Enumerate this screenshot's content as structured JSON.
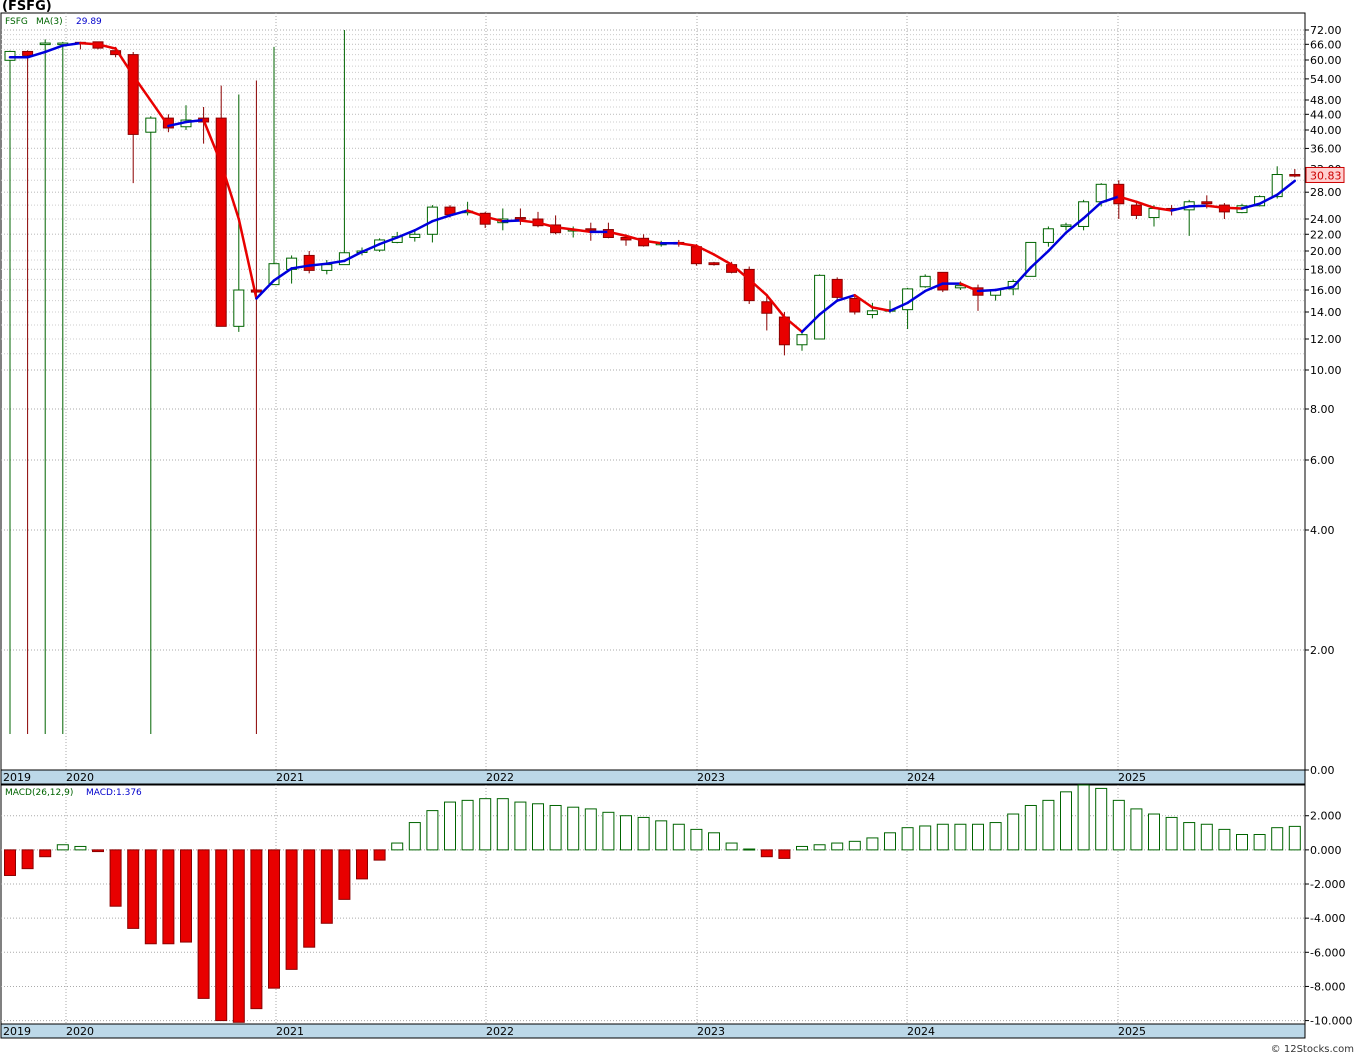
{
  "window_title": "(FSFG)",
  "credit": "© 12Stocks.com",
  "colors": {
    "up_fill": "#ffffff",
    "up_stroke": "#006400",
    "down_fill": "#e80000",
    "down_stroke": "#8b0000",
    "ma_up": "#0000dd",
    "ma_down": "#e80000",
    "grid": "#aaaaaa",
    "year_bar": "#bcd8e8",
    "price_tag_bg": "#ffd0d0",
    "price_tag_fg": "#cc0000"
  },
  "chart_data": [
    {
      "type": "candlestick",
      "title": "(FSFG)",
      "legend": {
        "symbol": "FSFG",
        "ma_label": "MA(3)",
        "ma_value": "29.89"
      },
      "last_price_label": "30.83",
      "y_scale": "log",
      "y_ticks": [
        "72.00",
        "66.00",
        "60.00",
        "54.00",
        "48.00",
        "44.00",
        "40.00",
        "36.00",
        "32.00",
        "28.00",
        "24.00",
        "22.00",
        "20.00",
        "18.00",
        "16.00",
        "14.00",
        "12.00",
        "10.00",
        "8.00",
        "6.00",
        "4.00",
        "2.00",
        "0.00"
      ],
      "year_labels": [
        "2019",
        "2020",
        "2021",
        "2022",
        "2023",
        "2024",
        "2025"
      ],
      "candles": [
        {
          "x": "2019-08",
          "o": 59.9,
          "h": 63.5,
          "l": 0.6,
          "c": 63.2
        },
        {
          "x": "2019-09",
          "o": 63.2,
          "h": 63.6,
          "l": 0.6,
          "c": 61.7
        },
        {
          "x": "2019-10",
          "o": 66.3,
          "h": 68.0,
          "l": 0.6,
          "c": 66.5
        },
        {
          "x": "2019-11",
          "o": 66.5,
          "h": 67.0,
          "l": 0.6,
          "c": 66.5
        },
        {
          "x": "2019-12",
          "o": 66.8,
          "h": 67.0,
          "l": 64.0,
          "c": 66.7
        },
        {
          "x": "2020-01",
          "o": 67.0,
          "h": 67.0,
          "l": 64.0,
          "c": 64.5
        },
        {
          "x": "2020-02",
          "o": 63.5,
          "h": 65.0,
          "l": 61.0,
          "c": 62.0
        },
        {
          "x": "2020-03",
          "o": 62.0,
          "h": 63.0,
          "l": 29.5,
          "c": 39.0
        },
        {
          "x": "2020-04",
          "o": 39.5,
          "h": 43.5,
          "l": 0.6,
          "c": 43.0
        },
        {
          "x": "2020-05",
          "o": 43.0,
          "h": 44.0,
          "l": 39.5,
          "c": 40.5
        },
        {
          "x": "2020-06",
          "o": 40.8,
          "h": 46.5,
          "l": 40.0,
          "c": 42.5
        },
        {
          "x": "2020-07",
          "o": 43.0,
          "h": 46.0,
          "l": 37.0,
          "c": 42.0
        },
        {
          "x": "2020-08",
          "o": 43.0,
          "h": 52.0,
          "l": 12.9,
          "c": 12.9
        },
        {
          "x": "2020-09",
          "o": 12.9,
          "h": 49.5,
          "l": 12.5,
          "c": 16.0
        },
        {
          "x": "2020-10",
          "o": 16.0,
          "h": 53.5,
          "l": 0.6,
          "c": 15.8
        },
        {
          "x": "2020-11",
          "o": 16.5,
          "h": 65.0,
          "l": 16.5,
          "c": 18.6
        },
        {
          "x": "2020-12",
          "o": 18.0,
          "h": 19.5,
          "l": 16.6,
          "c": 19.2
        },
        {
          "x": "2021-01",
          "o": 19.5,
          "h": 20.0,
          "l": 17.6,
          "c": 17.9
        },
        {
          "x": "2021-02",
          "o": 17.9,
          "h": 19.0,
          "l": 17.5,
          "c": 18.5
        },
        {
          "x": "2021-03",
          "o": 18.5,
          "h": 72.0,
          "l": 18.5,
          "c": 19.8
        },
        {
          "x": "2021-04",
          "o": 19.9,
          "h": 20.4,
          "l": 19.5,
          "c": 20.0
        },
        {
          "x": "2021-05",
          "o": 20.1,
          "h": 21.5,
          "l": 19.9,
          "c": 21.3
        },
        {
          "x": "2021-06",
          "o": 21.0,
          "h": 22.3,
          "l": 20.9,
          "c": 21.7
        },
        {
          "x": "2021-07",
          "o": 21.6,
          "h": 22.5,
          "l": 21.1,
          "c": 22.0
        },
        {
          "x": "2021-08",
          "o": 22.0,
          "h": 26.0,
          "l": 21.0,
          "c": 25.7
        },
        {
          "x": "2021-09",
          "o": 25.7,
          "h": 26.0,
          "l": 24.2,
          "c": 24.6
        },
        {
          "x": "2021-10",
          "o": 25.0,
          "h": 26.5,
          "l": 24.5,
          "c": 25.1
        },
        {
          "x": "2021-11",
          "o": 24.8,
          "h": 25.0,
          "l": 22.8,
          "c": 23.3
        },
        {
          "x": "2021-12",
          "o": 23.5,
          "h": 25.5,
          "l": 22.5,
          "c": 24.0
        },
        {
          "x": "2022-01",
          "o": 24.2,
          "h": 25.5,
          "l": 23.2,
          "c": 24.1
        },
        {
          "x": "2022-02",
          "o": 24.0,
          "h": 25.0,
          "l": 22.9,
          "c": 23.1
        },
        {
          "x": "2022-03",
          "o": 23.2,
          "h": 24.5,
          "l": 22.0,
          "c": 22.2
        },
        {
          "x": "2022-04",
          "o": 22.6,
          "h": 23.0,
          "l": 21.6,
          "c": 22.6
        },
        {
          "x": "2022-05",
          "o": 22.7,
          "h": 23.5,
          "l": 21.2,
          "c": 22.6
        },
        {
          "x": "2022-06",
          "o": 22.6,
          "h": 23.5,
          "l": 21.5,
          "c": 21.6
        },
        {
          "x": "2022-07",
          "o": 21.6,
          "h": 22.0,
          "l": 20.6,
          "c": 21.3
        },
        {
          "x": "2022-08",
          "o": 21.5,
          "h": 22.0,
          "l": 20.5,
          "c": 20.6
        },
        {
          "x": "2022-09",
          "o": 20.9,
          "h": 21.2,
          "l": 20.5,
          "c": 20.9
        },
        {
          "x": "2022-10",
          "o": 21.0,
          "h": 21.3,
          "l": 20.5,
          "c": 20.8
        },
        {
          "x": "2022-11",
          "o": 20.5,
          "h": 20.8,
          "l": 18.4,
          "c": 18.6
        },
        {
          "x": "2022-12",
          "o": 18.7,
          "h": 18.8,
          "l": 18.4,
          "c": 18.5
        },
        {
          "x": "2023-01",
          "o": 18.5,
          "h": 18.8,
          "l": 17.6,
          "c": 17.7
        },
        {
          "x": "2023-02",
          "o": 18.0,
          "h": 18.3,
          "l": 14.7,
          "c": 15.0
        },
        {
          "x": "2023-03",
          "o": 14.9,
          "h": 15.5,
          "l": 12.6,
          "c": 13.9
        },
        {
          "x": "2023-04",
          "o": 13.6,
          "h": 14.0,
          "l": 10.9,
          "c": 11.6
        },
        {
          "x": "2023-05",
          "o": 11.6,
          "h": 12.6,
          "l": 11.2,
          "c": 12.3
        },
        {
          "x": "2023-06",
          "o": 12.0,
          "h": 17.5,
          "l": 12.0,
          "c": 17.4
        },
        {
          "x": "2023-07",
          "o": 17.0,
          "h": 17.2,
          "l": 15.0,
          "c": 15.3
        },
        {
          "x": "2023-08",
          "o": 15.2,
          "h": 15.4,
          "l": 13.8,
          "c": 14.0
        },
        {
          "x": "2023-09",
          "o": 13.8,
          "h": 14.8,
          "l": 13.5,
          "c": 14.1
        },
        {
          "x": "2023-10",
          "o": 14.1,
          "h": 15.0,
          "l": 13.9,
          "c": 14.2
        },
        {
          "x": "2023-11",
          "o": 14.2,
          "h": 16.2,
          "l": 12.7,
          "c": 16.1
        },
        {
          "x": "2023-12",
          "o": 16.3,
          "h": 17.5,
          "l": 16.2,
          "c": 17.3
        },
        {
          "x": "2024-01",
          "o": 17.7,
          "h": 17.7,
          "l": 15.8,
          "c": 16.0
        },
        {
          "x": "2024-02",
          "o": 16.2,
          "h": 16.8,
          "l": 16.0,
          "c": 16.4
        },
        {
          "x": "2024-03",
          "o": 16.2,
          "h": 16.5,
          "l": 14.1,
          "c": 15.5
        },
        {
          "x": "2024-04",
          "o": 15.5,
          "h": 16.0,
          "l": 15.0,
          "c": 16.0
        },
        {
          "x": "2024-05",
          "o": 16.1,
          "h": 17.0,
          "l": 15.5,
          "c": 16.8
        },
        {
          "x": "2024-06",
          "o": 17.3,
          "h": 21.0,
          "l": 17.3,
          "c": 21.0
        },
        {
          "x": "2024-07",
          "o": 21.0,
          "h": 23.0,
          "l": 20.5,
          "c": 22.7
        },
        {
          "x": "2024-08",
          "o": 23.0,
          "h": 23.5,
          "l": 22.5,
          "c": 23.2
        },
        {
          "x": "2024-09",
          "o": 23.0,
          "h": 26.8,
          "l": 22.5,
          "c": 26.5
        },
        {
          "x": "2024-10",
          "o": 26.5,
          "h": 29.5,
          "l": 25.8,
          "c": 29.3
        },
        {
          "x": "2024-11",
          "o": 29.3,
          "h": 30.0,
          "l": 24.0,
          "c": 26.2
        },
        {
          "x": "2024-12",
          "o": 26.0,
          "h": 26.5,
          "l": 24.0,
          "c": 24.5
        },
        {
          "x": "2025-01",
          "o": 24.2,
          "h": 26.0,
          "l": 23.0,
          "c": 25.5
        },
        {
          "x": "2025-02",
          "o": 25.5,
          "h": 26.0,
          "l": 24.5,
          "c": 25.3
        },
        {
          "x": "2025-03",
          "o": 25.3,
          "h": 26.8,
          "l": 21.8,
          "c": 26.5
        },
        {
          "x": "2025-04",
          "o": 26.5,
          "h": 27.5,
          "l": 25.5,
          "c": 26.2
        },
        {
          "x": "2025-05",
          "o": 26.0,
          "h": 26.3,
          "l": 24.0,
          "c": 25.0
        },
        {
          "x": "2025-06",
          "o": 24.9,
          "h": 26.2,
          "l": 24.8,
          "c": 25.9
        },
        {
          "x": "2025-07",
          "o": 25.9,
          "h": 27.5,
          "l": 25.8,
          "c": 27.3
        },
        {
          "x": "2025-08",
          "o": 27.3,
          "h": 32.5,
          "l": 27.0,
          "c": 31.0
        },
        {
          "x": "2025-09",
          "o": 31.0,
          "h": 32.0,
          "l": 30.5,
          "c": 30.83
        }
      ],
      "ma3": [
        61,
        61,
        63,
        65.5,
        66.5,
        66,
        64.3,
        55,
        47.8,
        41,
        42,
        42.5,
        33,
        24,
        15.2,
        16.9,
        18.1,
        18.4,
        18.6,
        18.9,
        19.9,
        20.8,
        21.6,
        22.5,
        23.7,
        24.5,
        25.2,
        24.3,
        23.7,
        23.8,
        23.5,
        22.9,
        22.6,
        22.3,
        22.3,
        21.8,
        21.2,
        20.9,
        20.9,
        20.6,
        19.6,
        18.5,
        17.0,
        15.5,
        13.6,
        12.5,
        13.8,
        15.0,
        15.5,
        14.4,
        14.1,
        14.8,
        15.9,
        16.6,
        16.6,
        15.9,
        16.0,
        16.3,
        18.2,
        20.0,
        22.2,
        24.1,
        26.4,
        27.3,
        26.5,
        25.6,
        25.2,
        25.8,
        25.9,
        25.6,
        25.5,
        26.2,
        27.6,
        29.89
      ]
    },
    {
      "type": "bar",
      "title": "MACD(26,12,9)",
      "legend": {
        "label": "MACD(26,12,9)",
        "value_label": "MACD:1.376"
      },
      "y_ticks": [
        "2.000",
        "0.000",
        "-2.000",
        "-4.000",
        "-6.000",
        "-8.000",
        "-10.000"
      ],
      "ylim": [
        -10.2,
        3.8
      ],
      "year_labels": [
        "2019",
        "2020",
        "2021",
        "2022",
        "2023",
        "2024",
        "2025"
      ],
      "values": [
        -1.5,
        -1.1,
        -0.4,
        0.3,
        0.2,
        -0.1,
        -3.3,
        -4.6,
        -5.5,
        -5.5,
        -5.4,
        -8.7,
        -10.0,
        -10.1,
        -9.3,
        -8.1,
        -7.0,
        -5.7,
        -4.3,
        -2.9,
        -1.7,
        -0.6,
        0.4,
        1.6,
        2.3,
        2.8,
        2.9,
        3.0,
        3.0,
        2.8,
        2.7,
        2.6,
        2.5,
        2.4,
        2.2,
        2.0,
        1.9,
        1.7,
        1.5,
        1.2,
        1.0,
        0.4,
        0.05,
        -0.4,
        -0.5,
        0.2,
        0.3,
        0.4,
        0.5,
        0.7,
        1.0,
        1.3,
        1.4,
        1.5,
        1.5,
        1.5,
        1.6,
        2.1,
        2.6,
        2.9,
        3.4,
        3.8,
        3.6,
        2.9,
        2.4,
        2.1,
        1.9,
        1.6,
        1.5,
        1.2,
        0.9,
        0.9,
        1.3,
        1.376
      ]
    }
  ]
}
